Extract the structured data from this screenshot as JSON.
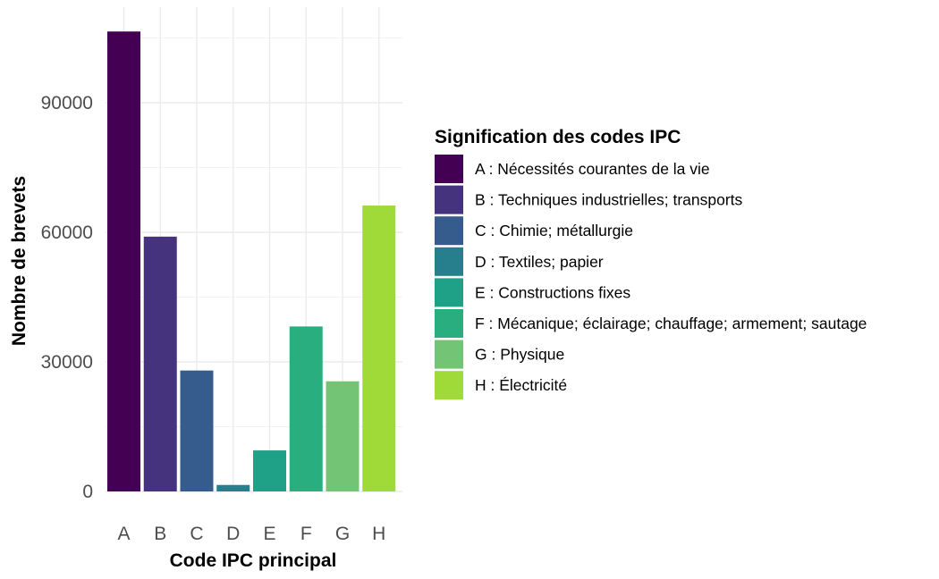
{
  "chart_data": {
    "type": "bar",
    "categories": [
      "A",
      "B",
      "C",
      "D",
      "E",
      "F",
      "G",
      "H"
    ],
    "values": [
      106500,
      59000,
      28000,
      1500,
      9500,
      38200,
      25500,
      66200
    ],
    "colors": [
      "#440154",
      "#46337e",
      "#365c8d",
      "#277f8e",
      "#1fa187",
      "#29af7f",
      "#74c476",
      "#a0da39"
    ],
    "xlabel": "Code IPC principal",
    "ylabel": "Nombre de brevets",
    "yticks": [
      0,
      30000,
      60000,
      90000
    ],
    "ylim": [
      0,
      111000
    ],
    "grid": true,
    "legend": {
      "title": "Signification des codes IPC",
      "placement": "right",
      "entries": [
        "A : Nécessités courantes de la vie",
        "B : Techniques industrielles; transports",
        "C : Chimie; métallurgie",
        "D : Textiles; papier",
        "E : Constructions fixes",
        "F : Mécanique; éclairage; chauffage; armement; sautage",
        "G : Physique",
        "H : Électricité"
      ]
    }
  }
}
